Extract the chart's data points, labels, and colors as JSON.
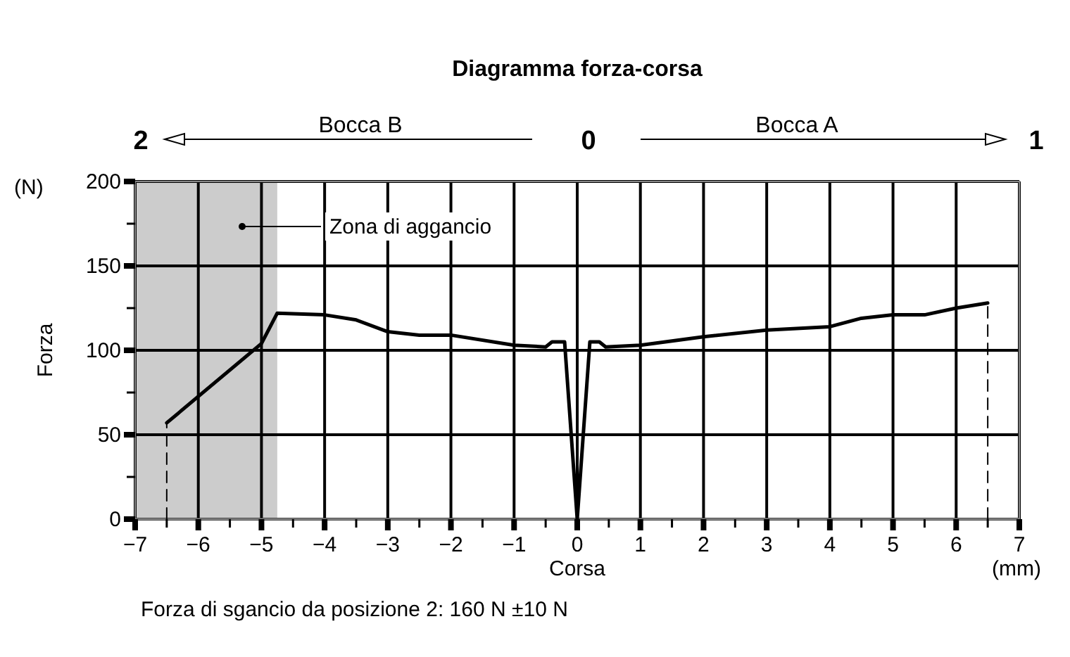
{
  "chart_data": {
    "type": "line",
    "title": "Diagramma forza-corsa",
    "xlabel": "Corsa",
    "ylabel": "Forza",
    "annotations": [
      "Bocca B",
      "Bocca A",
      "2",
      "0",
      "1",
      "(N)",
      "(mm)",
      "Forza di sgancio da posizione 2: 160 N ±10 N"
    ],
    "series": [
      {
        "color": "#000000",
        "x": [
          -6.5,
          -5,
          -4.75,
          -4,
          -3.5,
          -3,
          -2.5,
          -2,
          -1,
          -0.5,
          -0.4,
          -0.2,
          0,
          0.2,
          0.35,
          0.45,
          1,
          2,
          3,
          4,
          4.5,
          5,
          5.5,
          6,
          6.5
        ],
        "values": [
          57,
          104,
          122,
          121,
          118,
          111,
          109,
          109,
          103,
          102,
          105,
          105,
          0,
          105,
          105,
          102,
          103,
          108,
          112,
          114,
          119,
          121,
          121,
          125,
          128
        ]
      },
      {
        "color": "#000000",
        "x": [
          -6.5,
          -6.5
        ],
        "values": [
          0,
          57
        ],
        "line_style": "dashed"
      },
      {
        "color": "#000000",
        "x": [
          6.5,
          6.5
        ],
        "values": [
          0,
          128
        ],
        "line_style": "dashed"
      }
    ],
    "bands": [
      {
        "axis": "x",
        "from": -7,
        "to": -4.75,
        "label": "Zona di aggancio",
        "color": "#cccccc"
      }
    ],
    "xlim": [
      -7,
      7
    ],
    "ylim": [
      0,
      200
    ],
    "xticks": [
      -7,
      {
        "value": -6.5,
        "label": null
      },
      -6,
      {
        "value": -5.5,
        "label": null
      },
      -5,
      {
        "value": -4.5,
        "label": null
      },
      -4,
      {
        "value": -3.5,
        "label": null
      },
      -3,
      {
        "value": -2.5,
        "label": null
      },
      -2,
      {
        "value": -1.5,
        "label": null
      },
      -1,
      {
        "value": -0.5,
        "label": null
      },
      0,
      {
        "value": 0.5,
        "label": null
      },
      1,
      {
        "value": 1.5,
        "label": null
      },
      2,
      {
        "value": 2.5,
        "label": null
      },
      3,
      {
        "value": 3.5,
        "label": null
      },
      4,
      {
        "value": 4.5,
        "label": null
      },
      5,
      {
        "value": 5.5,
        "label": null
      },
      6,
      {
        "value": 6.5,
        "label": null
      },
      7
    ],
    "yticks": [
      0,
      {
        "value": 25,
        "label": null
      },
      50,
      {
        "value": 75,
        "label": null
      },
      100,
      {
        "value": 125,
        "label": null
      },
      150,
      {
        "value": 175,
        "label": null
      },
      200
    ],
    "grid": true,
    "line_style": "solid",
    "marker": "none"
  }
}
